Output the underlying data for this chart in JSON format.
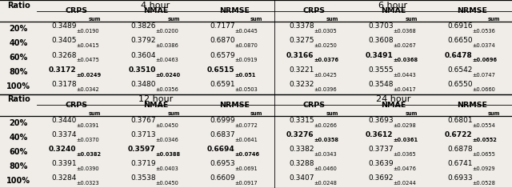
{
  "top_section": {
    "left_header": "4 hour",
    "right_header": "6 hour",
    "rows": [
      {
        "ratio": "20%",
        "vals": [
          "0.3489",
          "0.0190",
          "0.3826",
          "0.0200",
          "0.7177",
          "0.0445",
          "0.3378",
          "0.0305",
          "0.3703",
          "0.0368",
          "0.6916",
          "0.0536"
        ],
        "bold": [
          false,
          false,
          false,
          false,
          false,
          false
        ]
      },
      {
        "ratio": "40%",
        "vals": [
          "0.3405",
          "0.0415",
          "0.3792",
          "0.0386",
          "0.6870",
          "0.0870",
          "0.3275",
          "0.0250",
          "0.3608",
          "0.0267",
          "0.6650",
          "0.0374"
        ],
        "bold": [
          false,
          false,
          false,
          false,
          false,
          false
        ]
      },
      {
        "ratio": "60%",
        "vals": [
          "0.3268",
          "0.0475",
          "0.3604",
          "0.0463",
          "0.6579",
          "0.0919",
          "0.3166",
          "0.0376",
          "0.3491",
          "0.0368",
          "0.6478",
          "0.0696"
        ],
        "bold": [
          false,
          false,
          false,
          true,
          true,
          true
        ]
      },
      {
        "ratio": "80%",
        "vals": [
          "0.3172",
          "0.0249",
          "0.3510",
          "0.0240",
          "0.6515",
          "0.051",
          "0.3221",
          "0.0425",
          "0.3555",
          "0.0443",
          "0.6542",
          "0.0747"
        ],
        "bold": [
          true,
          true,
          true,
          false,
          false,
          false
        ]
      },
      {
        "ratio": "100%",
        "vals": [
          "0.3178",
          "0.0342",
          "0.3480",
          "0.0356",
          "0.6591",
          "0.0503",
          "0.3232",
          "0.0396",
          "0.3548",
          "0.0417",
          "0.6550",
          "0.0660"
        ],
        "bold": [
          false,
          false,
          false,
          false,
          false,
          false
        ]
      }
    ]
  },
  "bottom_section": {
    "left_header": "12 hour",
    "right_header": "24 hour",
    "rows": [
      {
        "ratio": "20%",
        "vals": [
          "0.3440",
          "0.0391",
          "0.3767",
          "0.0450",
          "0.6999",
          "0.0772",
          "0.3315",
          "0.0266",
          "0.3693",
          "0.0298",
          "0.6801",
          "0.0554"
        ],
        "bold": [
          false,
          false,
          false,
          false,
          false,
          false
        ]
      },
      {
        "ratio": "40%",
        "vals": [
          "0.3374",
          "0.0370",
          "0.3713",
          "0.0346",
          "0.6837",
          "0.0641",
          "0.3276",
          "0.0358",
          "0.3612",
          "0.0361",
          "0.6722",
          "0.0552"
        ],
        "bold": [
          false,
          false,
          false,
          true,
          true,
          true
        ]
      },
      {
        "ratio": "60%",
        "vals": [
          "0.3240",
          "0.0382",
          "0.3597",
          "0.0388",
          "0.6694",
          "0.0746",
          "0.3382",
          "0.0343",
          "0.3737",
          "0.0365",
          "0.6878",
          "0.0655"
        ],
        "bold": [
          true,
          true,
          true,
          false,
          false,
          false
        ]
      },
      {
        "ratio": "80%",
        "vals": [
          "0.3391",
          "0.0390",
          "0.3719",
          "0.0403",
          "0.6953",
          "0.0691",
          "0.3288",
          "0.0460",
          "0.3639",
          "0.0476",
          "0.6741",
          "0.0929"
        ],
        "bold": [
          false,
          false,
          false,
          false,
          false,
          false
        ]
      },
      {
        "ratio": "100%",
        "vals": [
          "0.3284",
          "0.0323",
          "0.3538",
          "0.0450",
          "0.6609",
          "0.0917",
          "0.3407",
          "0.0248",
          "0.3692",
          "0.0244",
          "0.6933",
          "0.0528"
        ],
        "bold": [
          false,
          false,
          false,
          false,
          false,
          false
        ]
      }
    ]
  },
  "bg_color": "#f0ede8",
  "line_color": "#000000",
  "text_color": "#000000",
  "col_names": [
    "CRPS",
    "NMAE",
    "NRMSE",
    "CRPS",
    "NMAE",
    "NRMSE"
  ]
}
